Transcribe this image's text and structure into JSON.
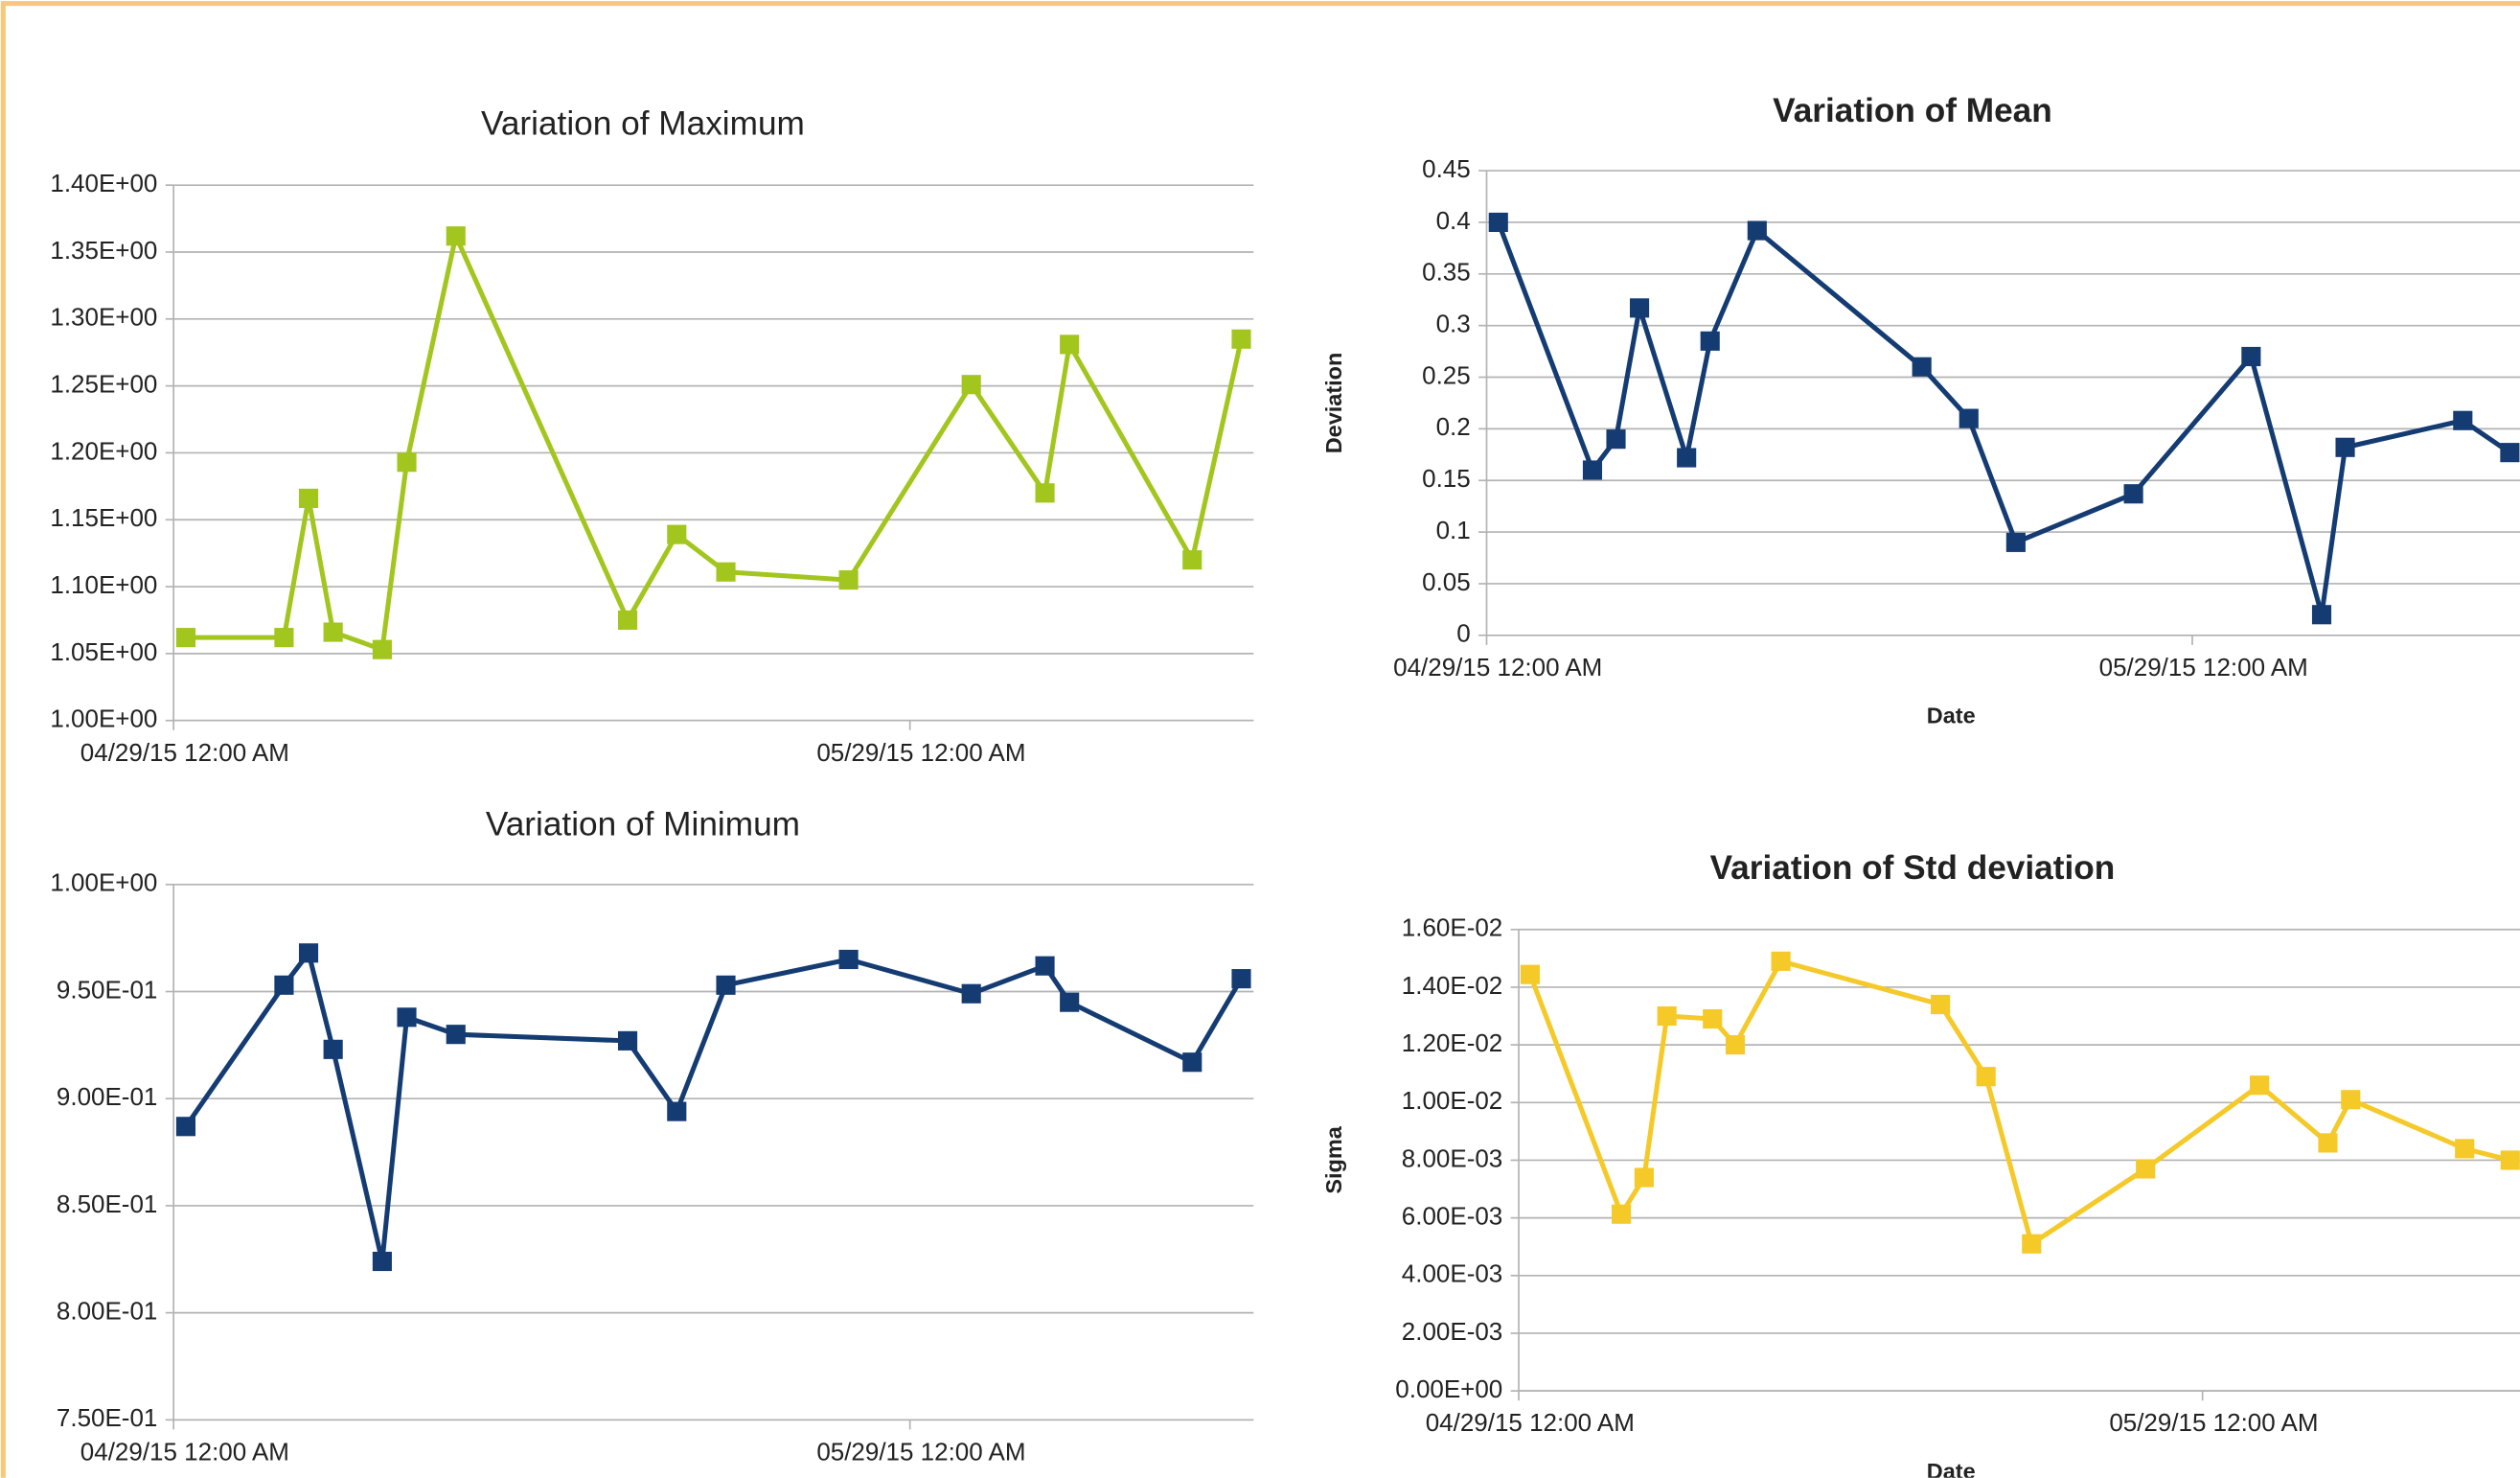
{
  "chart_data": [
    {
      "type": "line",
      "title": "Variation of Maximum",
      "color": "#a2c61e",
      "x": [
        "2015-04-29T12:00",
        "2015-05-03T12:00",
        "2015-05-04T12:00",
        "2015-05-05T12:00",
        "2015-05-07T12:00",
        "2015-05-08T12:00",
        "2015-05-10T12:00",
        "2015-05-17T12:00",
        "2015-05-19T12:00",
        "2015-05-21T12:00",
        "2015-05-26T12:00",
        "2015-05-31T12:00",
        "2015-06-03T12:00",
        "2015-06-04T12:00",
        "2015-06-09T12:00",
        "2015-06-11T12:00"
      ],
      "values": [
        1.062,
        1.062,
        1.166,
        1.066,
        1.053,
        1.193,
        1.362,
        1.075,
        1.139,
        1.111,
        1.105,
        1.251,
        1.17,
        1.281,
        1.12,
        1.285
      ],
      "xlim": [
        "2015-04-29T00:00",
        "2015-06-12T00:00"
      ],
      "xticks": [
        {
          "value": "2015-04-29T00:00",
          "label": "04/29/15 12:00 AM"
        },
        {
          "value": "2015-05-29T00:00",
          "label": "05/29/15 12:00 AM"
        }
      ],
      "ylim": [
        1.0,
        1.4
      ],
      "yticks": [
        {
          "value": 1.0,
          "label": "1.00E+00"
        },
        {
          "value": 1.05,
          "label": "1.05E+00"
        },
        {
          "value": 1.1,
          "label": "1.10E+00"
        },
        {
          "value": 1.15,
          "label": "1.15E+00"
        },
        {
          "value": 1.2,
          "label": "1.20E+00"
        },
        {
          "value": 1.25,
          "label": "1.25E+00"
        },
        {
          "value": 1.3,
          "label": "1.30E+00"
        },
        {
          "value": 1.35,
          "label": "1.35E+00"
        },
        {
          "value": 1.4,
          "label": "1.40E+00"
        }
      ],
      "grid": true
    },
    {
      "type": "line",
      "title": "Variation of Mean",
      "xlabel": "Date",
      "ylabel": "Deviation",
      "color": "#143c73",
      "x": [
        "2015-04-29T12:00",
        "2015-05-03T12:00",
        "2015-05-04T12:00",
        "2015-05-05T12:00",
        "2015-05-07T12:00",
        "2015-05-08T12:00",
        "2015-05-10T12:00",
        "2015-05-17T12:00",
        "2015-05-19T12:00",
        "2015-05-21T12:00",
        "2015-05-26T12:00",
        "2015-05-31T12:00",
        "2015-06-03T12:00",
        "2015-06-04T12:00",
        "2015-06-09T12:00",
        "2015-06-11T12:00"
      ],
      "values": [
        0.4,
        0.16,
        0.19,
        0.317,
        0.172,
        0.285,
        0.392,
        0.26,
        0.21,
        0.09,
        0.137,
        0.27,
        0.02,
        0.182,
        0.208,
        0.177
      ],
      "xlim": [
        "2015-04-29T00:00",
        "2015-06-12T00:00"
      ],
      "xticks": [
        {
          "value": "2015-04-29T00:00",
          "label": "04/29/15 12:00 AM"
        },
        {
          "value": "2015-05-29T00:00",
          "label": "05/29/15 12:00 AM"
        }
      ],
      "ylim": [
        0,
        0.45
      ],
      "yticks": [
        0,
        0.05,
        0.1,
        0.15,
        0.2,
        0.25,
        0.3,
        0.35,
        0.4,
        0.45
      ],
      "grid": true
    },
    {
      "type": "line",
      "title": "Variation of Minimum",
      "color": "#143c73",
      "x": [
        "2015-04-29T12:00",
        "2015-05-03T12:00",
        "2015-05-04T12:00",
        "2015-05-05T12:00",
        "2015-05-07T12:00",
        "2015-05-08T12:00",
        "2015-05-10T12:00",
        "2015-05-17T12:00",
        "2015-05-19T12:00",
        "2015-05-21T12:00",
        "2015-05-26T12:00",
        "2015-05-31T12:00",
        "2015-06-03T12:00",
        "2015-06-04T12:00",
        "2015-06-09T12:00",
        "2015-06-11T12:00"
      ],
      "values": [
        0.887,
        0.953,
        0.968,
        0.923,
        0.824,
        0.938,
        0.93,
        0.927,
        0.894,
        0.953,
        0.965,
        0.949,
        0.962,
        0.945,
        0.917,
        0.956
      ],
      "xlim": [
        "2015-04-29T00:00",
        "2015-06-12T00:00"
      ],
      "xticks": [
        {
          "value": "2015-04-29T00:00",
          "label": "04/29/15 12:00 AM"
        },
        {
          "value": "2015-05-29T00:00",
          "label": "05/29/15 12:00 AM"
        }
      ],
      "ylim": [
        0.75,
        1.0
      ],
      "yticks": [
        {
          "value": 0.75,
          "label": "7.50E-01"
        },
        {
          "value": 0.8,
          "label": "8.00E-01"
        },
        {
          "value": 0.85,
          "label": "8.50E-01"
        },
        {
          "value": 0.9,
          "label": "9.00E-01"
        },
        {
          "value": 0.95,
          "label": "9.50E-01"
        },
        {
          "value": 1.0,
          "label": "1.00E+00"
        }
      ],
      "grid": true
    },
    {
      "type": "line",
      "title": "Variation of Std deviation",
      "xlabel": "Date",
      "ylabel": "Sigma",
      "color": "#f5c928",
      "x": [
        "2015-04-29T12:00",
        "2015-05-03T12:00",
        "2015-05-04T12:00",
        "2015-05-05T12:00",
        "2015-05-07T12:00",
        "2015-05-08T12:00",
        "2015-05-10T12:00",
        "2015-05-17T12:00",
        "2015-05-19T12:00",
        "2015-05-21T12:00",
        "2015-05-26T12:00",
        "2015-05-31T12:00",
        "2015-06-03T12:00",
        "2015-06-04T12:00",
        "2015-06-09T12:00",
        "2015-06-11T12:00"
      ],
      "values": [
        0.01444,
        0.00613,
        0.0074,
        0.013,
        0.0129,
        0.012,
        0.0149,
        0.0134,
        0.0109,
        0.0051,
        0.0077,
        0.0106,
        0.0086,
        0.0101,
        0.0084,
        0.008
      ],
      "xlim": [
        "2015-04-29T00:00",
        "2015-06-12T00:00"
      ],
      "xticks": [
        {
          "value": "2015-04-29T00:00",
          "label": "04/29/15 12:00 AM"
        },
        {
          "value": "2015-05-29T00:00",
          "label": "05/29/15 12:00 AM"
        }
      ],
      "ylim": [
        0,
        0.016
      ],
      "yticks": [
        {
          "value": 0,
          "label": "0.00E+00"
        },
        {
          "value": 0.002,
          "label": "2.00E-03"
        },
        {
          "value": 0.004,
          "label": "4.00E-03"
        },
        {
          "value": 0.006,
          "label": "6.00E-03"
        },
        {
          "value": 0.008,
          "label": "8.00E-03"
        },
        {
          "value": 0.01,
          "label": "1.00E-02"
        },
        {
          "value": 0.012,
          "label": "1.20E-02"
        },
        {
          "value": 0.014,
          "label": "1.40E-02"
        },
        {
          "value": 0.016,
          "label": "1.60E-02"
        }
      ],
      "grid": true
    }
  ]
}
